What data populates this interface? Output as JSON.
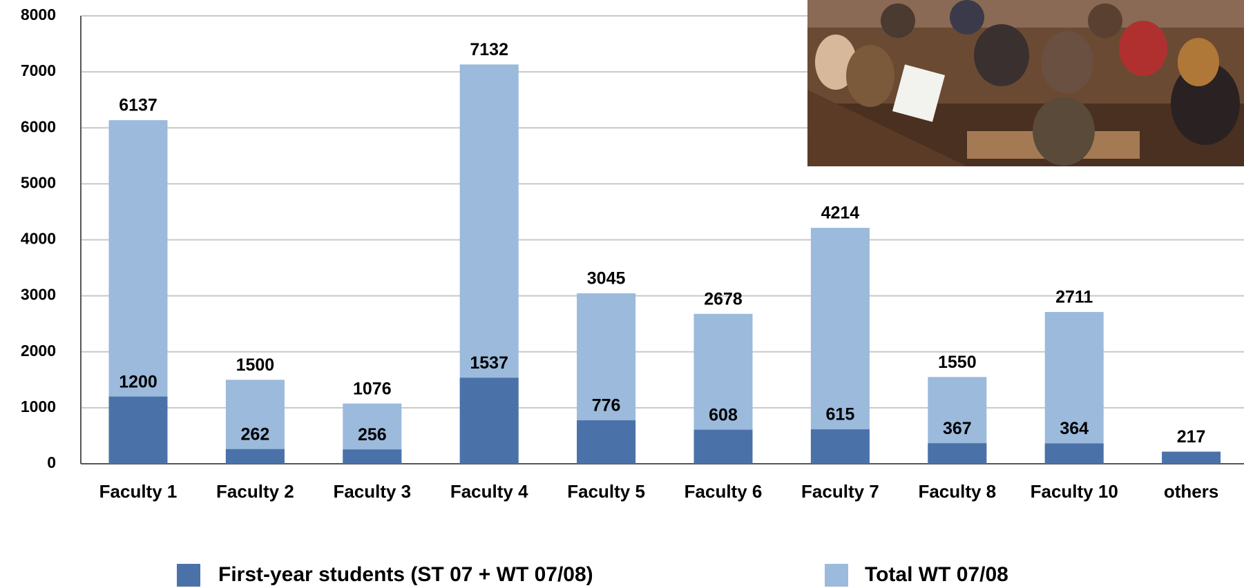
{
  "chart_data": {
    "type": "bar",
    "categories": [
      "Faculty 1",
      "Faculty 2",
      "Faculty 3",
      "Faculty 4",
      "Faculty 5",
      "Faculty 6",
      "Faculty 7",
      "Faculty 8",
      "Faculty 10",
      "others"
    ],
    "series": [
      {
        "name": "Total WT 07/08",
        "color": "#9bbadc",
        "values": [
          6137,
          1500,
          1076,
          7132,
          3045,
          2678,
          4214,
          1550,
          2711,
          null
        ]
      },
      {
        "name": "First-year students (ST 07 + WT 07/08)",
        "color": "#4a72a9",
        "values": [
          1200,
          262,
          256,
          1537,
          776,
          608,
          615,
          367,
          364,
          217
        ]
      }
    ],
    "ylim": [
      0,
      8000
    ],
    "yticks": [
      0,
      1000,
      2000,
      3000,
      4000,
      5000,
      6000,
      7000,
      8000
    ],
    "grid": true
  }
}
